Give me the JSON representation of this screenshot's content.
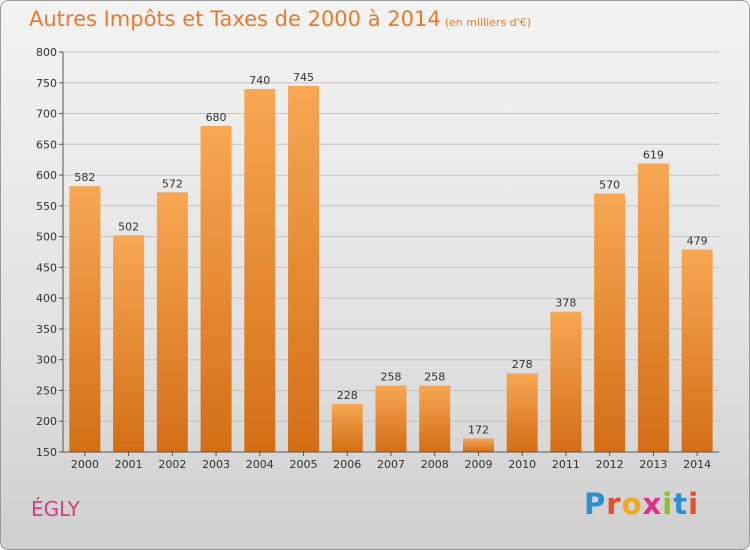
{
  "header": {
    "title": "Autres Impôts et Taxes de 2000 à 2014",
    "subtitle": "(en milliers d'€)"
  },
  "footer": {
    "place": "ÉGLY",
    "logo_text": "Proxiti"
  },
  "colors": {
    "title": "#e87a2a",
    "bar_light": "#f8a753",
    "bar_dark": "#d46e15",
    "place": "#d6407a"
  },
  "chart_data": {
    "type": "bar",
    "title": "Autres Impôts et Taxes de 2000 à 2014",
    "subtitle": "(en milliers d'€)",
    "categories": [
      "2000",
      "2001",
      "2002",
      "2003",
      "2004",
      "2005",
      "2006",
      "2007",
      "2008",
      "2009",
      "2010",
      "2011",
      "2012",
      "2013",
      "2014"
    ],
    "values": [
      582,
      502,
      572,
      680,
      740,
      745,
      228,
      258,
      258,
      172,
      278,
      378,
      570,
      619,
      479
    ],
    "ylim": [
      150,
      800
    ],
    "yticks": [
      150,
      200,
      250,
      300,
      350,
      400,
      450,
      500,
      550,
      600,
      650,
      700,
      750,
      800
    ],
    "grid": true,
    "xlabel": "",
    "ylabel": ""
  }
}
